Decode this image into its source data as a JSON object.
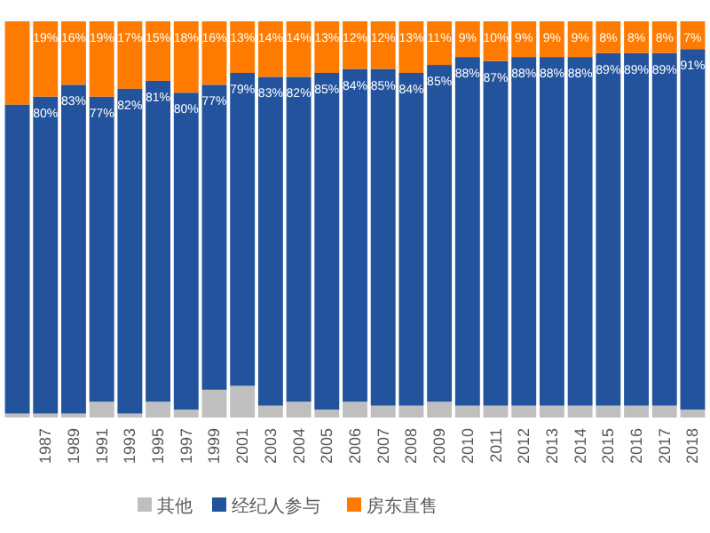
{
  "chart_data": {
    "type": "bar",
    "stacked": true,
    "legend": "bottom",
    "categories": [
      null,
      "1987",
      "1989",
      "1991",
      "1993",
      "1995",
      "1997",
      "1999",
      "2001",
      "2003",
      "2004",
      "2005",
      "2006",
      "2007",
      "2008",
      "2009",
      "2010",
      "2011",
      "2012",
      "2013",
      "2014",
      "2015",
      "2016",
      "2017",
      "2018"
    ],
    "series": [
      {
        "name": "其他",
        "color": "#bfbfbf",
        "values": [
          1,
          1,
          1,
          4,
          1,
          4,
          2,
          7,
          8,
          3,
          4,
          2,
          4,
          3,
          3,
          4,
          3,
          3,
          3,
          3,
          3,
          3,
          3,
          3,
          2
        ]
      },
      {
        "name": "经纪人参与",
        "color": "#22539c",
        "values": [
          78,
          80,
          83,
          77,
          82,
          81,
          80,
          77,
          79,
          83,
          82,
          85,
          84,
          85,
          84,
          85,
          88,
          87,
          88,
          88,
          88,
          89,
          89,
          89,
          91
        ],
        "value_labels": [
          null,
          "80%",
          "83%",
          "77%",
          "82%",
          "81%",
          "80%",
          "77%",
          "79%",
          "83%",
          "82%",
          "85%",
          "84%",
          "85%",
          "84%",
          "85%",
          "88%",
          "87%",
          "88%",
          "88%",
          "88%",
          "89%",
          "89%",
          "89%",
          "91%"
        ]
      },
      {
        "name": "房东直售",
        "color": "#ff7b00",
        "values": [
          21,
          19,
          16,
          19,
          17,
          15,
          18,
          16,
          13,
          14,
          14,
          13,
          12,
          12,
          13,
          11,
          9,
          10,
          9,
          9,
          9,
          8,
          8,
          8,
          7
        ],
        "value_labels": [
          null,
          "19%",
          "16%",
          "19%",
          "17%",
          "15%",
          "18%",
          "16%",
          "13%",
          "14%",
          "14%",
          "13%",
          "12%",
          "12%",
          "13%",
          "11%",
          "9%",
          "10%",
          "9%",
          "9%",
          "9%",
          "8%",
          "8%",
          "8%",
          "7%"
        ]
      }
    ]
  }
}
